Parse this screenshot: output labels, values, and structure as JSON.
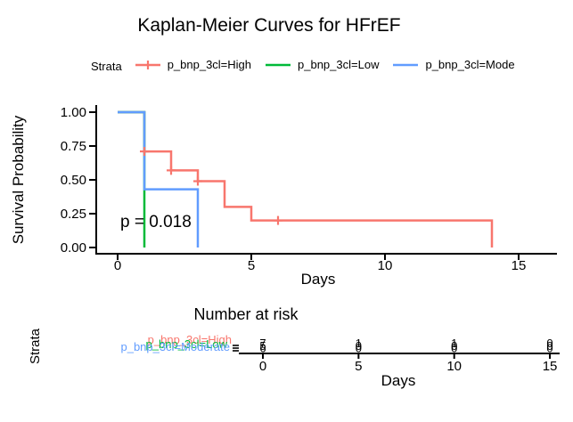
{
  "figure": {
    "title": "Kaplan-Meier Curves for HFrEF",
    "background": "#ffffff"
  },
  "legend": {
    "strata_label": "Strata",
    "items": [
      {
        "label": "p_bnp_3cl=High",
        "color": "#F8766D",
        "key": "line-cross"
      },
      {
        "label": "p_bnp_3cl=Low",
        "color": "#00BA38",
        "key": "line"
      },
      {
        "label": "p_bnp_3cl=Mode",
        "color": "#619CFF",
        "key": "line"
      }
    ]
  },
  "chart_data": {
    "type": "line",
    "subtype": "kaplan-meier-step",
    "title": "Kaplan-Meier Curves for HFrEF",
    "xlabel": "Days",
    "ylabel": "Survival Probability",
    "xlim": [
      0,
      15
    ],
    "ylim": [
      0,
      1
    ],
    "grid": false,
    "legend_position": "top",
    "p_value": "p = 0.018",
    "xticks": [
      {
        "v": 0,
        "label": "0"
      },
      {
        "v": 5,
        "label": "5"
      },
      {
        "v": 10,
        "label": "10"
      },
      {
        "v": 15,
        "label": "15"
      }
    ],
    "yticks": [
      {
        "v": 0,
        "label": "0.00"
      },
      {
        "v": 0.25,
        "label": "0.25"
      },
      {
        "v": 0.5,
        "label": "0.50"
      },
      {
        "v": 0.75,
        "label": "0.75"
      },
      {
        "v": 1,
        "label": "1.00"
      }
    ],
    "series": [
      {
        "name": "p_bnp_3cl=High",
        "color": "#F8766D",
        "steps": [
          [
            0,
            1
          ],
          [
            1,
            0.71
          ],
          [
            2,
            0.57
          ],
          [
            3,
            0.49
          ],
          [
            4,
            0.3
          ],
          [
            5,
            0.2
          ],
          [
            14,
            0
          ]
        ],
        "censors": [
          [
            1,
            0.71
          ],
          [
            2,
            0.57
          ],
          [
            3,
            0.49
          ],
          [
            6,
            0.2
          ]
        ]
      },
      {
        "name": "p_bnp_3cl=Low",
        "color": "#00BA38",
        "steps": [
          [
            0,
            1
          ],
          [
            1,
            0
          ]
        ],
        "censors": []
      },
      {
        "name": "p_bnp_3cl=Moderate",
        "color": "#619CFF",
        "steps": [
          [
            0,
            1
          ],
          [
            1,
            0.43
          ],
          [
            3,
            0
          ]
        ],
        "censors": []
      }
    ],
    "risk_table": {
      "title": "Number at risk",
      "strata_axis_label": "Strata",
      "xlabel": "Days",
      "xticks": [
        {
          "v": 0,
          "label": "0"
        },
        {
          "v": 5,
          "label": "5"
        },
        {
          "v": 10,
          "label": "10"
        },
        {
          "v": 15,
          "label": "15"
        }
      ],
      "rows": [
        {
          "label": "p_bnp_3cl=High",
          "color": "#F8766D",
          "values": [
            "7",
            "1",
            "1",
            "0"
          ]
        },
        {
          "label": "p_bnp_3cl=Low",
          "color": "#00BA38",
          "values": [
            "5",
            "0",
            "0",
            "0"
          ]
        },
        {
          "label": "p_bnp_3cl=Moderate",
          "color": "#619CFF",
          "values": [
            "6",
            "0",
            "0",
            "0"
          ]
        }
      ]
    }
  }
}
